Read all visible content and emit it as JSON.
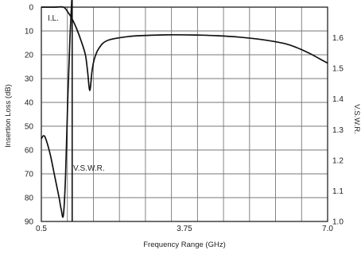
{
  "chart_data": {
    "type": "line",
    "title": "",
    "xlabel": "Frequency Range (GHz)",
    "ylabel_left": "Insertion Loss (dB)",
    "ylabel_right": "V.S.W.R.",
    "xlim": [
      0.5,
      7.0
    ],
    "ylim_left": [
      0,
      90
    ],
    "ylim_left_inverted": true,
    "ylim_right": [
      1.0,
      1.7
    ],
    "x_ticks": [
      "0.5",
      "3.75",
      "7.0"
    ],
    "y_left_ticks": [
      "0",
      "10",
      "20",
      "30",
      "40",
      "50",
      "60",
      "70",
      "80",
      "90"
    ],
    "y_right_ticks": [
      "1.0",
      "1.1",
      "1.2",
      "1.3",
      "1.4",
      "1.5",
      "1.6"
    ],
    "grid": true,
    "vertical_gridlines": 11,
    "series": [
      {
        "name": "I.L.",
        "axis": "left",
        "x": [
          0.5,
          0.8,
          1.0,
          1.1,
          1.2,
          1.3,
          1.4,
          1.5,
          1.55,
          1.6,
          1.65,
          1.7,
          1.8,
          2.0,
          2.5,
          3.0,
          3.5,
          4.0,
          4.5,
          5.0,
          5.5,
          6.0,
          6.3,
          6.6,
          6.8,
          7.0
        ],
        "values": [
          0,
          0,
          0,
          2,
          5,
          9,
          14,
          20,
          27,
          35,
          27,
          22,
          17.5,
          14,
          12.3,
          11.8,
          11.6,
          11.7,
          12.0,
          12.6,
          13.6,
          15.2,
          17,
          19.5,
          21.5,
          23.5
        ]
      },
      {
        "name": "V.S.W.R.",
        "axis": "right",
        "x": [
          0.5,
          0.55,
          0.6,
          0.7,
          0.8,
          0.9,
          0.95,
          1.0,
          1.05,
          1.1,
          1.15,
          1.2
        ],
        "values": [
          1.27,
          1.28,
          1.27,
          1.22,
          1.15,
          1.08,
          1.04,
          1.02,
          1.15,
          1.4,
          1.6,
          1.75
        ]
      }
    ],
    "marker": {
      "x": 1.2
    },
    "annotations": {
      "il_label": "I.L.",
      "vswr_label": "V.S.W.R."
    }
  }
}
